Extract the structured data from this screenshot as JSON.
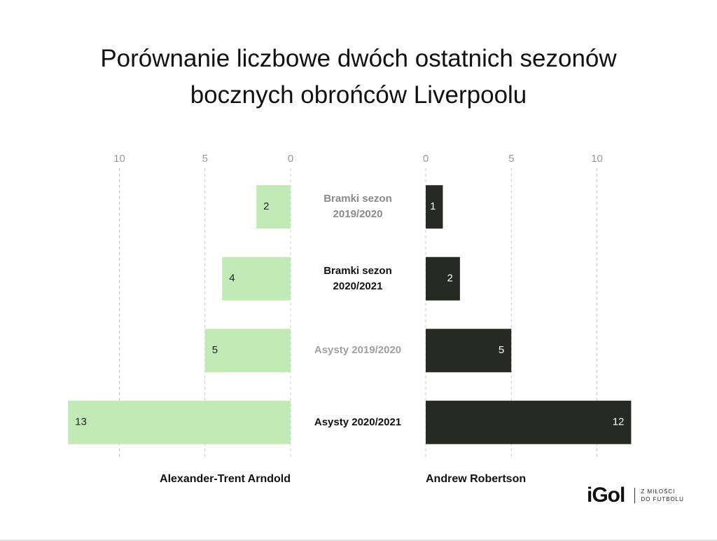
{
  "chart_data": {
    "type": "butterfly-bar",
    "title": "Porównanie liczbowe dwóch ostatnich sezonów bocznych obrońców Liverpoolu",
    "categories": [
      "Bramki sezon 2019/2020",
      "Bramki sezon 2020/2021",
      "Asysty 2019/2020",
      "Asysty 2020/2021"
    ],
    "category_colors": [
      "#8a8a8a",
      "#111111",
      "#a0a0a0",
      "#111111"
    ],
    "grid": true,
    "series": [
      {
        "name": "Alexander-Trent Arndold",
        "color": "#c2eab6",
        "label_color": "#222222",
        "side": "left",
        "values": [
          2,
          4,
          5,
          13
        ],
        "xlim": [
          0,
          13
        ],
        "xticks": [
          0,
          5,
          10
        ]
      },
      {
        "name": "Andrew Robertson",
        "color": "#262a23",
        "label_color": "#ffffff",
        "side": "right",
        "values": [
          1,
          2,
          5,
          12
        ],
        "xlim": [
          0,
          12
        ],
        "xticks": [
          0,
          5,
          10
        ]
      }
    ]
  },
  "logo": {
    "name": "iGol",
    "tagline": [
      "Z MIŁOŚCI",
      "DO FUTBOLU"
    ]
  }
}
